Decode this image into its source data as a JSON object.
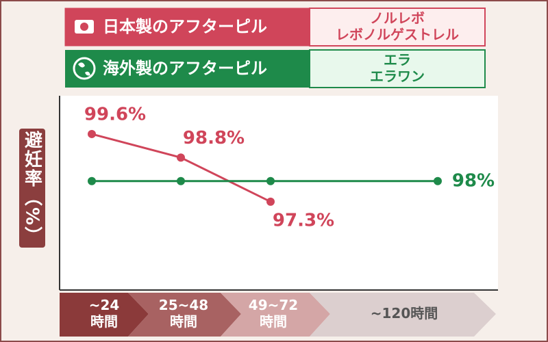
{
  "chart_data": {
    "type": "line",
    "ylabel": "避妊率（%）",
    "categories": [
      "~24\n時間",
      "25~48\n時間",
      "49~72\n時間",
      "~120時間"
    ],
    "ylim": [
      94.3,
      100.9
    ],
    "series": [
      {
        "name": "日本製のアフターピル",
        "products": [
          "ノルレボ",
          "レボノルゲストレル"
        ],
        "color": "#d0455a",
        "values": [
          99.6,
          98.8,
          97.3,
          null
        ],
        "value_labels": [
          "99.6%",
          "98.8%",
          "97.3%",
          null
        ]
      },
      {
        "name": "海外製のアフターピル",
        "products": [
          "エラ",
          "エラワン"
        ],
        "color": "#1e8a4a",
        "values": [
          98,
          98,
          98,
          98
        ],
        "value_labels": [
          null,
          null,
          null,
          "98%"
        ]
      }
    ]
  }
}
